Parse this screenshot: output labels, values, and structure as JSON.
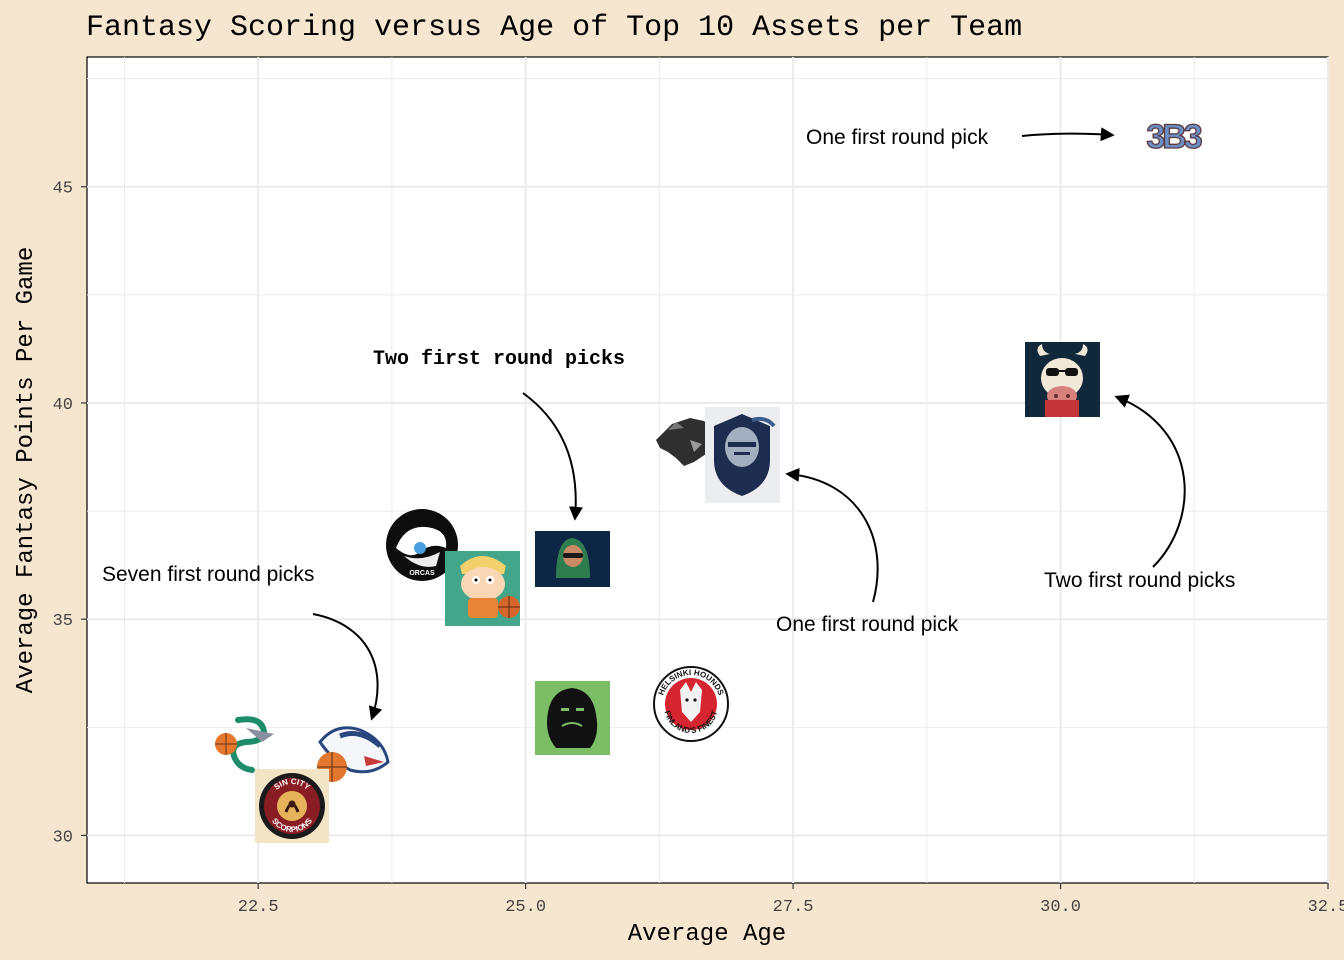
{
  "chart_data": {
    "type": "scatter",
    "title": "Fantasy Scoring versus Age of Top 10 Assets per Team",
    "xlabel": "Average Age",
    "ylabel": "Average Fantasy Points Per Game",
    "xlim": [
      20.9,
      32.5
    ],
    "ylim": [
      28.9,
      48.0
    ],
    "xticks": [
      "22.5",
      "25.0",
      "27.5",
      "30.0",
      "32.5"
    ],
    "yticks": [
      "30",
      "35",
      "40",
      "45"
    ],
    "grid": true,
    "colors": {
      "background": "#F7E6CF",
      "panel": "#FFFFFF",
      "grid": "#EBEBEB",
      "axis": "#000000"
    },
    "points": [
      {
        "team_icon": "big3-logo",
        "x": 31.2,
        "y": 47.5
      },
      {
        "team_icon": "cow-sunglasses-logo",
        "x": 30.1,
        "y": 41.5
      },
      {
        "team_icon": "wolf-logo",
        "x": 26.4,
        "y": 39.9
      },
      {
        "team_icon": "knight-logo",
        "x": 26.9,
        "y": 39.5
      },
      {
        "team_icon": "orcas-logo",
        "x": 23.7,
        "y": 37.3
      },
      {
        "team_icon": "cartoon-kid-basketball-logo",
        "x": 24.3,
        "y": 36.2
      },
      {
        "team_icon": "hooded-figure-logo",
        "x": 25.2,
        "y": 37.0
      },
      {
        "team_icon": "bigfoot-logo",
        "x": 25.2,
        "y": 33.0
      },
      {
        "team_icon": "helsinki-hounds-logo",
        "x": 26.4,
        "y": 33.4
      },
      {
        "team_icon": "snake-logo",
        "x": 21.6,
        "y": 32.3
      },
      {
        "team_icon": "bird-basketball-logo",
        "x": 22.9,
        "y": 31.9
      },
      {
        "team_icon": "sin-city-scorpions-logo",
        "x": 22.4,
        "y": 30.9
      }
    ],
    "annotations": [
      {
        "text": "One first round pick",
        "style": "sans"
      },
      {
        "text": "Two first round picks",
        "style": "mono-bold"
      },
      {
        "text": "One first round pick",
        "style": "sans"
      },
      {
        "text": "Two first round picks",
        "style": "sans"
      },
      {
        "text": "Seven first round picks",
        "style": "sans"
      }
    ],
    "logo_text": {
      "orcas": "ORCAS",
      "helsinki_top": "HELSINKI HOUNDS",
      "helsinki_bottom": "FINLAND'S FINEST",
      "sin_city_top": "SIN CITY",
      "sin_city_bottom": "SCORPIONS",
      "big3": "3B3"
    }
  }
}
